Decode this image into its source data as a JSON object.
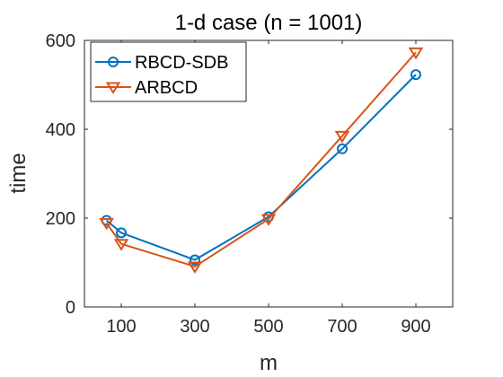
{
  "chart_data": {
    "type": "line",
    "title": "1-d case (n = 1001)",
    "xlabel": "m",
    "ylabel": "time",
    "xlim": [
      0,
      1000
    ],
    "ylim": [
      0,
      600
    ],
    "xticks": [
      100,
      300,
      500,
      700,
      900
    ],
    "yticks": [
      0,
      200,
      400,
      600
    ],
    "grid": false,
    "legend_position": "top-left",
    "series": [
      {
        "name": "RBCD-SDB",
        "color": "#0072BD",
        "marker": "circle",
        "x": [
          60,
          100,
          300,
          500,
          700,
          900
        ],
        "y": [
          195,
          167,
          106,
          203,
          356,
          523
        ]
      },
      {
        "name": "ARBCD",
        "color": "#D95319",
        "marker": "triangle-down",
        "x": [
          60,
          100,
          300,
          500,
          700,
          900
        ],
        "y": [
          189,
          142,
          91,
          198,
          385,
          573
        ]
      }
    ]
  }
}
